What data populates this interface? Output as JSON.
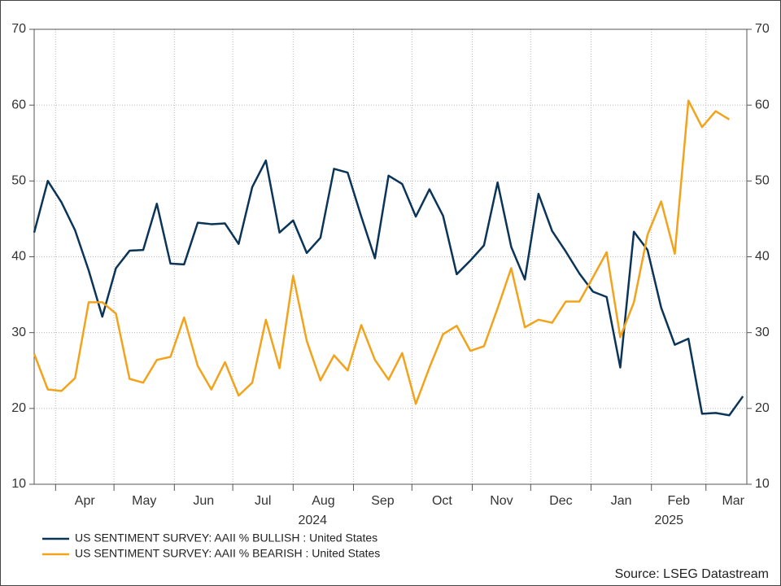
{
  "chart_data": {
    "type": "line",
    "x": [
      "2024-03-21",
      "2024-03-28",
      "2024-04-04",
      "2024-04-11",
      "2024-04-18",
      "2024-04-25",
      "2024-05-02",
      "2024-05-09",
      "2024-05-16",
      "2024-05-23",
      "2024-05-30",
      "2024-06-06",
      "2024-06-13",
      "2024-06-20",
      "2024-06-27",
      "2024-07-04",
      "2024-07-11",
      "2024-07-18",
      "2024-07-25",
      "2024-08-01",
      "2024-08-08",
      "2024-08-15",
      "2024-08-22",
      "2024-08-29",
      "2024-09-05",
      "2024-09-12",
      "2024-09-19",
      "2024-09-26",
      "2024-10-03",
      "2024-10-10",
      "2024-10-17",
      "2024-10-24",
      "2024-10-31",
      "2024-11-07",
      "2024-11-14",
      "2024-11-21",
      "2024-11-28",
      "2024-12-05",
      "2024-12-12",
      "2024-12-19",
      "2024-12-26",
      "2025-01-02",
      "2025-01-09",
      "2025-01-16",
      "2025-01-23",
      "2025-01-30",
      "2025-02-06",
      "2025-02-13",
      "2025-02-20",
      "2025-02-27",
      "2025-03-06",
      "2025-03-13",
      "2025-03-20"
    ],
    "series": [
      {
        "name": "US SENTIMENT SURVEY: AAII % BULLISH : United States",
        "color": "#0b3558",
        "values": [
          43.2,
          50.0,
          47.2,
          43.5,
          38.2,
          32.1,
          38.5,
          40.8,
          40.9,
          47.0,
          39.1,
          39.0,
          44.5,
          44.3,
          44.4,
          41.7,
          49.2,
          52.7,
          43.2,
          44.8,
          40.5,
          42.5,
          51.6,
          51.1,
          45.3,
          39.8,
          50.7,
          49.6,
          45.3,
          48.9,
          45.4,
          37.7,
          39.5,
          41.5,
          49.8,
          41.3,
          37.0,
          48.3,
          43.4,
          40.7,
          37.8,
          35.4,
          34.7,
          25.4,
          43.3,
          40.9,
          33.3,
          28.4,
          29.2,
          19.3,
          19.4,
          19.1,
          21.6
        ]
      },
      {
        "name": "US SENTIMENT SURVEY: AAII % BEARISH : United States",
        "color": "#f2a31b",
        "values": [
          27.2,
          22.5,
          22.3,
          24.0,
          34.0,
          34.0,
          32.5,
          23.9,
          23.4,
          26.4,
          26.8,
          32.0,
          25.6,
          22.5,
          26.1,
          21.7,
          23.4,
          31.7,
          25.3,
          37.5,
          28.9,
          23.7,
          27.0,
          25.0,
          31.0,
          26.4,
          23.8,
          27.3,
          20.6,
          25.4,
          29.8,
          30.9,
          27.6,
          28.2,
          33.2,
          38.5,
          30.7,
          31.7,
          31.3,
          34.1,
          34.1,
          37.3,
          40.6,
          29.4,
          34.0,
          42.9,
          47.3,
          40.4,
          60.6,
          57.1,
          59.2,
          58.1,
          null
        ]
      }
    ],
    "xlim": [
      "2024-03-21",
      "2025-03-22"
    ],
    "xticks": [
      {
        "value": "2024-04",
        "label": "Apr"
      },
      {
        "value": "2024-05",
        "label": "May"
      },
      {
        "value": "2024-06",
        "label": "Jun"
      },
      {
        "value": "2024-07",
        "label": "Jul"
      },
      {
        "value": "2024-08",
        "label": "Aug"
      },
      {
        "value": "2024-09",
        "label": "Sep"
      },
      {
        "value": "2024-10",
        "label": "Oct"
      },
      {
        "value": "2024-11",
        "label": "Nov"
      },
      {
        "value": "2024-12",
        "label": "Dec"
      },
      {
        "value": "2025-01",
        "label": "Jan"
      },
      {
        "value": "2025-02",
        "label": "Feb"
      },
      {
        "value": "2025-03",
        "label": "Mar"
      }
    ],
    "year_labels": [
      "2024",
      "2025"
    ],
    "ylim": [
      10,
      70
    ],
    "yticks": [
      10,
      20,
      30,
      40,
      50,
      60,
      70
    ],
    "y2lim": [
      10,
      70
    ],
    "y2ticks": [
      10,
      20,
      30,
      40,
      50,
      60,
      70
    ],
    "grid": true,
    "source": "Source: LSEG Datastream"
  }
}
